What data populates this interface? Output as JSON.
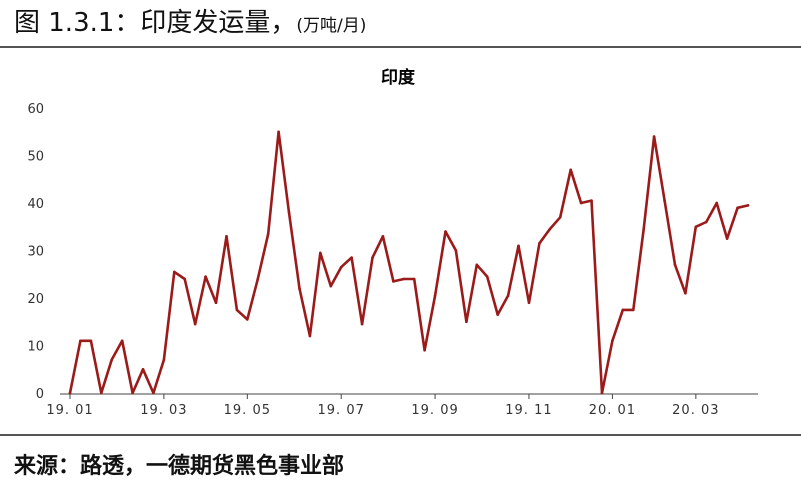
{
  "figure": {
    "label": "图 1.3.1：印度发运量，",
    "unit": "(万吨/月)"
  },
  "source": "来源：路透，一德期货黑色事业部",
  "chart_data": {
    "type": "line",
    "title": "印度",
    "xlabel": "",
    "ylabel": "",
    "ylim": [
      0,
      60
    ],
    "yticks": [
      0,
      10,
      20,
      30,
      40,
      50,
      60
    ],
    "xticks": [
      {
        "label": "19. 01",
        "index": 0
      },
      {
        "label": "19. 03",
        "index": 9
      },
      {
        "label": "19. 05",
        "index": 17
      },
      {
        "label": "19. 07",
        "index": 26
      },
      {
        "label": "19. 09",
        "index": 35
      },
      {
        "label": "19. 11",
        "index": 44
      },
      {
        "label": "20. 01",
        "index": 52
      },
      {
        "label": "20. 03",
        "index": 60
      }
    ],
    "grid": false,
    "line_color": "#9b1b1b",
    "series": [
      {
        "values": [
          0,
          11,
          11,
          0,
          7,
          11,
          0,
          5,
          0,
          7,
          25.5,
          24,
          14.5,
          24.5,
          19,
          33,
          17.5,
          15.5,
          24,
          33.5,
          55,
          38,
          22,
          12,
          29.5,
          22.5,
          26.5,
          28.5,
          14.5,
          28.5,
          33,
          23.5,
          24,
          24,
          9,
          20.5,
          34,
          30,
          15,
          27,
          24.5,
          16.5,
          20.5,
          31,
          19,
          31.5,
          34.5,
          37,
          47,
          40,
          40.5,
          0,
          11,
          17.5,
          17.5,
          34.5,
          54,
          40.5,
          27,
          21,
          35,
          36,
          40,
          32.5,
          39,
          39.5
        ]
      }
    ]
  }
}
